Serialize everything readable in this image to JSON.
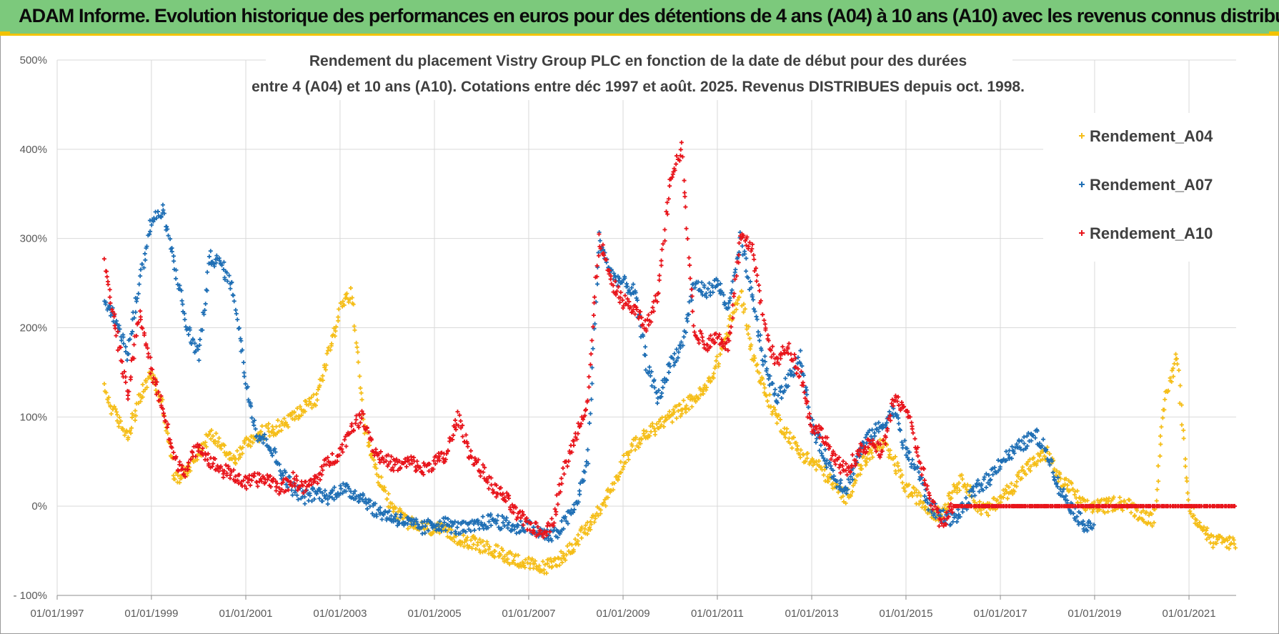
{
  "banner": {
    "title": "ADAM Informe. Evolution historique des performances en euros pour des détentions de 4 ans (A04) à 10 ans (A10) avec les revenus connus distribués"
  },
  "colors": {
    "banner_bg": "#7cc97c",
    "banner_accent": "#f2c200",
    "A04": "#f5be19",
    "A07": "#1f6fb5",
    "A10": "#e8141b",
    "grid": "#d9d9d9"
  },
  "chart_data": {
    "type": "scatter",
    "title_lines": [
      "Rendement du placement Vistry Group PLC en fonction de la date de début pour des durées",
      "entre 4 (A04) et 10 ans (A10). Cotations entre déc 1997 et août. 2025. Revenus DISTRIBUES depuis oct. 1998."
    ],
    "xlabel": "",
    "ylabel": "",
    "x_type": "date",
    "xlim": [
      "1997-01-01",
      "2021-12-31"
    ],
    "ylim": [
      -100,
      500
    ],
    "x_ticks": [
      "01/01/1997",
      "01/01/1999",
      "01/01/2001",
      "01/01/2003",
      "01/01/2005",
      "01/01/2007",
      "01/01/2009",
      "01/01/2011",
      "01/01/2013",
      "01/01/2015",
      "01/01/2017",
      "01/01/2019",
      "01/01/2021"
    ],
    "y_ticks": [
      {
        "value": -100,
        "label": "- 100%"
      },
      {
        "value": 0,
        "label": "0%"
      },
      {
        "value": 100,
        "label": "100%"
      },
      {
        "value": 200,
        "label": "200%"
      },
      {
        "value": 300,
        "label": "300%"
      },
      {
        "value": 400,
        "label": "400%"
      },
      {
        "value": 500,
        "label": "500%"
      }
    ],
    "grid": "horizontal",
    "legend": "right",
    "series": [
      {
        "name": "Rendement_A04",
        "color": "#f5be19",
        "x": [
          "1998-01",
          "1998-04",
          "1998-07",
          "1998-10",
          "1999-01",
          "1999-04",
          "1999-07",
          "1999-10",
          "2000-01",
          "2000-04",
          "2000-07",
          "2000-10",
          "2001-01",
          "2001-04",
          "2001-07",
          "2001-10",
          "2002-01",
          "2002-04",
          "2002-07",
          "2002-10",
          "2003-01",
          "2003-04",
          "2003-07",
          "2003-10",
          "2004-01",
          "2004-04",
          "2004-07",
          "2004-10",
          "2005-01",
          "2005-04",
          "2005-07",
          "2005-10",
          "2006-01",
          "2006-04",
          "2006-07",
          "2006-10",
          "2007-01",
          "2007-04",
          "2007-07",
          "2007-10",
          "2008-01",
          "2008-04",
          "2008-07",
          "2008-10",
          "2009-01",
          "2009-04",
          "2009-07",
          "2009-10",
          "2010-01",
          "2010-04",
          "2010-07",
          "2010-10",
          "2011-01",
          "2011-04",
          "2011-07",
          "2011-10",
          "2012-01",
          "2012-04",
          "2012-07",
          "2012-10",
          "2013-01",
          "2013-04",
          "2013-07",
          "2013-10",
          "2014-01",
          "2014-04",
          "2014-07",
          "2014-10",
          "2015-01",
          "2015-04",
          "2015-07",
          "2015-10",
          "2016-01",
          "2016-04",
          "2016-07",
          "2016-10",
          "2017-01",
          "2017-04",
          "2017-07",
          "2017-10",
          "2018-01",
          "2018-04",
          "2018-07",
          "2018-10",
          "2019-01",
          "2019-04",
          "2019-07",
          "2019-10",
          "2020-01",
          "2020-04",
          "2020-07",
          "2020-10",
          "2021-01",
          "2021-04",
          "2021-07",
          "2021-10"
        ],
        "values": [
          130,
          100,
          80,
          120,
          150,
          110,
          30,
          40,
          60,
          80,
          70,
          50,
          70,
          80,
          85,
          90,
          100,
          110,
          120,
          170,
          220,
          240,
          90,
          40,
          10,
          -10,
          -20,
          -25,
          -25,
          -30,
          -35,
          -40,
          -45,
          -50,
          -55,
          -60,
          -65,
          -70,
          -65,
          -55,
          -40,
          -25,
          -5,
          20,
          50,
          70,
          80,
          90,
          100,
          110,
          120,
          130,
          160,
          200,
          240,
          170,
          130,
          100,
          80,
          60,
          50,
          40,
          20,
          10,
          40,
          60,
          70,
          50,
          20,
          10,
          -5,
          -10,
          20,
          30,
          0,
          -5,
          10,
          20,
          40,
          50,
          60,
          30,
          20,
          0,
          0,
          0,
          5,
          0,
          -10,
          -15,
          120,
          170,
          0,
          -20,
          -40,
          -40
        ]
      },
      {
        "name": "Rendement_A07",
        "color": "#1f6fb5",
        "x": [
          "1998-01",
          "1998-04",
          "1998-07",
          "1998-10",
          "1999-01",
          "1999-04",
          "1999-07",
          "1999-10",
          "2000-01",
          "2000-04",
          "2000-07",
          "2000-10",
          "2001-01",
          "2001-04",
          "2001-07",
          "2001-10",
          "2002-01",
          "2002-04",
          "2002-07",
          "2002-10",
          "2003-01",
          "2003-04",
          "2003-07",
          "2003-10",
          "2004-01",
          "2004-04",
          "2004-07",
          "2004-10",
          "2005-01",
          "2005-04",
          "2005-07",
          "2005-10",
          "2006-01",
          "2006-04",
          "2006-07",
          "2006-10",
          "2007-01",
          "2007-04",
          "2007-07",
          "2007-10",
          "2008-01",
          "2008-04",
          "2008-07",
          "2008-10",
          "2009-01",
          "2009-04",
          "2009-07",
          "2009-10",
          "2010-01",
          "2010-04",
          "2010-07",
          "2010-10",
          "2011-01",
          "2011-04",
          "2011-07",
          "2011-10",
          "2012-01",
          "2012-04",
          "2012-07",
          "2012-10",
          "2013-01",
          "2013-04",
          "2013-07",
          "2013-10",
          "2014-01",
          "2014-04",
          "2014-07",
          "2014-10",
          "2015-01",
          "2015-04",
          "2015-07",
          "2015-10",
          "2016-01",
          "2016-04",
          "2016-07",
          "2016-10",
          "2017-01",
          "2017-04",
          "2017-07",
          "2017-10",
          "2018-01",
          "2018-04",
          "2018-07",
          "2018-10"
        ],
        "values": [
          230,
          210,
          170,
          250,
          320,
          330,
          270,
          200,
          170,
          280,
          270,
          240,
          140,
          80,
          70,
          40,
          20,
          10,
          15,
          10,
          20,
          15,
          10,
          -5,
          -10,
          -15,
          -20,
          -25,
          -20,
          -20,
          -25,
          -25,
          -20,
          -15,
          -20,
          -25,
          -20,
          -30,
          -35,
          -20,
          0,
          50,
          300,
          260,
          250,
          240,
          160,
          120,
          160,
          180,
          250,
          240,
          250,
          220,
          300,
          230,
          160,
          120,
          140,
          170,
          90,
          60,
          30,
          20,
          60,
          80,
          90,
          110,
          60,
          40,
          0,
          -10,
          -15,
          0,
          20,
          30,
          50,
          60,
          70,
          80,
          60,
          20,
          0,
          -20
        ]
      },
      {
        "name": "Rendement_A10",
        "color": "#e8141b",
        "x": [
          "1998-01",
          "1998-04",
          "1998-07",
          "1998-10",
          "1999-01",
          "1999-04",
          "1999-07",
          "1999-10",
          "2000-01",
          "2000-04",
          "2000-07",
          "2000-10",
          "2001-01",
          "2001-04",
          "2001-07",
          "2001-10",
          "2002-01",
          "2002-04",
          "2002-07",
          "2002-10",
          "2003-01",
          "2003-04",
          "2003-07",
          "2003-10",
          "2004-01",
          "2004-04",
          "2004-07",
          "2004-10",
          "2005-01",
          "2005-04",
          "2005-07",
          "2005-10",
          "2006-01",
          "2006-04",
          "2006-07",
          "2006-10",
          "2007-01",
          "2007-04",
          "2007-07",
          "2007-10",
          "2008-01",
          "2008-04",
          "2008-07",
          "2008-10",
          "2009-01",
          "2009-04",
          "2009-07",
          "2009-10",
          "2010-01",
          "2010-04",
          "2010-07",
          "2010-10",
          "2011-01",
          "2011-04",
          "2011-07",
          "2011-10",
          "2012-01",
          "2012-04",
          "2012-07",
          "2012-10",
          "2013-01",
          "2013-04",
          "2013-07",
          "2013-10",
          "2014-01",
          "2014-04",
          "2014-07",
          "2014-10",
          "2015-01",
          "2015-04",
          "2015-07",
          "2015-10",
          "2016-01",
          "2016-04",
          "2016-07",
          "2016-10",
          "2017-01",
          "2017-04",
          "2017-07",
          "2017-10",
          "2018-01",
          "2018-04",
          "2018-07",
          "2018-10",
          "2019-01",
          "2019-04",
          "2019-07",
          "2019-10",
          "2020-01",
          "2020-04",
          "2020-07",
          "2020-10",
          "2021-01",
          "2021-04",
          "2021-07",
          "2021-10"
        ],
        "values": [
          270,
          200,
          120,
          220,
          150,
          110,
          50,
          40,
          70,
          50,
          40,
          35,
          25,
          30,
          30,
          20,
          30,
          20,
          30,
          50,
          60,
          90,
          100,
          60,
          50,
          45,
          50,
          40,
          50,
          55,
          100,
          60,
          40,
          20,
          10,
          -10,
          -20,
          -30,
          -20,
          40,
          80,
          120,
          300,
          250,
          230,
          220,
          200,
          240,
          370,
          400,
          200,
          180,
          190,
          180,
          300,
          290,
          200,
          160,
          180,
          150,
          90,
          80,
          50,
          40,
          60,
          70,
          60,
          120,
          110,
          60,
          10,
          -20,
          0,
          0,
          0,
          0,
          0,
          0,
          0,
          0,
          0,
          0,
          0,
          0,
          0,
          0,
          0,
          0,
          0,
          0,
          0,
          0,
          0,
          0,
          0,
          0
        ]
      }
    ]
  }
}
